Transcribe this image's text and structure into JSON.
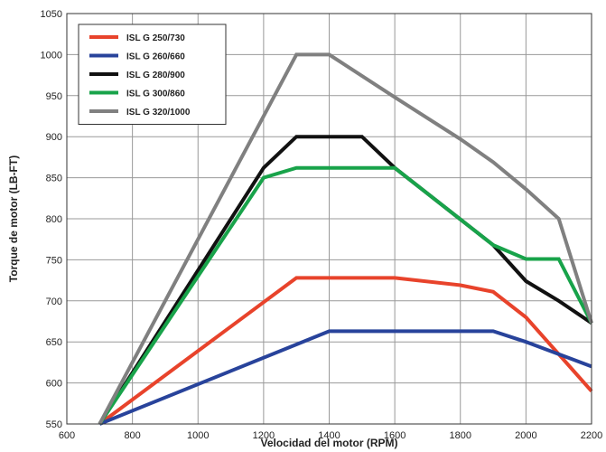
{
  "chart_data": {
    "type": "line",
    "title": "",
    "xlabel": "Velocidad del motor (RPM)",
    "ylabel": "Torque de motor (LB-FT)",
    "xlim": [
      600,
      2200
    ],
    "ylim": [
      550,
      1050
    ],
    "x_ticks": [
      600,
      800,
      1000,
      1200,
      1400,
      1600,
      1800,
      2000,
      2200
    ],
    "y_ticks": [
      550,
      600,
      650,
      700,
      750,
      800,
      850,
      900,
      950,
      1000,
      1050
    ],
    "grid": true,
    "legend_position": "top-left",
    "series": [
      {
        "name": "ISL G 250/730",
        "color": "#e8432b",
        "x": [
          700,
          1300,
          1600,
          1800,
          1900,
          2000,
          2200
        ],
        "y": [
          550,
          728,
          728,
          719,
          711,
          680,
          590
        ]
      },
      {
        "name": "ISL G 260/660",
        "color": "#28439b",
        "x": [
          700,
          1400,
          1900,
          2000,
          2200
        ],
        "y": [
          550,
          663,
          663,
          650,
          620
        ]
      },
      {
        "name": "ISL G 280/900",
        "color": "#111111",
        "x": [
          700,
          1200,
          1300,
          1500,
          1600,
          1900,
          2000,
          2100,
          2200
        ],
        "y": [
          550,
          862,
          900,
          900,
          862,
          768,
          724,
          700,
          673
        ]
      },
      {
        "name": "ISL G 300/860",
        "color": "#18a34a",
        "x": [
          700,
          1200,
          1300,
          1600,
          1900,
          2000,
          2100,
          2200
        ],
        "y": [
          550,
          850,
          862,
          862,
          768,
          751,
          751,
          673
        ]
      },
      {
        "name": "ISL G 320/1000",
        "color": "#808080",
        "x": [
          700,
          1300,
          1400,
          1600,
          1800,
          1900,
          2000,
          2100,
          2200
        ],
        "y": [
          550,
          1000,
          1000,
          948,
          897,
          869,
          836,
          800,
          673
        ]
      }
    ]
  }
}
